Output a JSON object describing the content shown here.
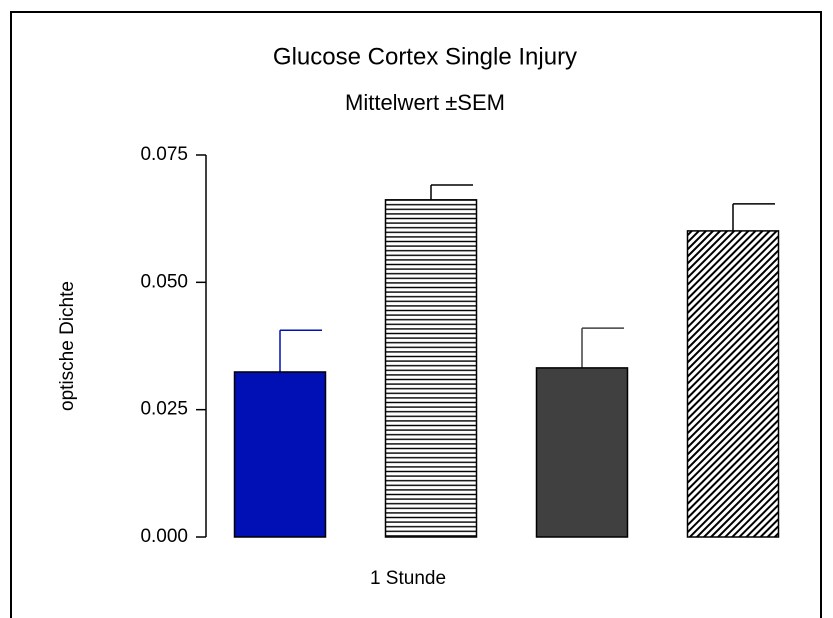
{
  "chart_data": {
    "type": "bar",
    "title": "Glucose Cortex Single Injury",
    "subtitle": "Mittelwert ±SEM",
    "y_label": "optische Dichte",
    "x_label": "1 Stunde",
    "categories": [
      null,
      null,
      null,
      null
    ],
    "values": [
      0.0324,
      0.0662,
      0.0332,
      0.0601
    ],
    "errors": [
      0.0082,
      0.0029,
      0.0078,
      0.0053
    ],
    "colors": [
      "#0010b4",
      "#000000",
      "#404040",
      "#000000"
    ],
    "patterns": [
      "solid",
      "horizontal",
      "solid",
      "diagonal"
    ],
    "ylim": [
      0,
      0.075
    ],
    "yticks": [
      {
        "value": 0,
        "label": "0.000"
      },
      0.025,
      {
        "value": 0.05,
        "label": "0.050"
      },
      0.075
    ],
    "grid": false
  }
}
